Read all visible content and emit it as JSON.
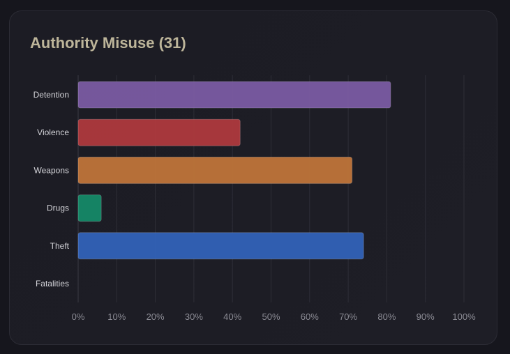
{
  "card": {
    "title": "Authority Misuse (31)"
  },
  "chart_data": {
    "type": "bar",
    "orientation": "horizontal",
    "title": "Authority Misuse (31)",
    "categories": [
      "Detention",
      "Violence",
      "Weapons",
      "Drugs",
      "Theft",
      "Fatalities"
    ],
    "values": [
      81,
      42,
      71,
      6,
      74,
      0
    ],
    "unit": "%",
    "xlim": [
      0,
      100
    ],
    "x_ticks": [
      0,
      10,
      20,
      30,
      40,
      50,
      60,
      70,
      80,
      90,
      100
    ],
    "x_tick_labels": [
      "0%",
      "10%",
      "20%",
      "30%",
      "40%",
      "50%",
      "60%",
      "70%",
      "80%",
      "90%",
      "100%"
    ],
    "colors": [
      "#7d5ca6",
      "#b23a3e",
      "#c37639",
      "#158c69",
      "#3264bc",
      "#888888"
    ],
    "grid": "vertical",
    "legend": "none"
  }
}
